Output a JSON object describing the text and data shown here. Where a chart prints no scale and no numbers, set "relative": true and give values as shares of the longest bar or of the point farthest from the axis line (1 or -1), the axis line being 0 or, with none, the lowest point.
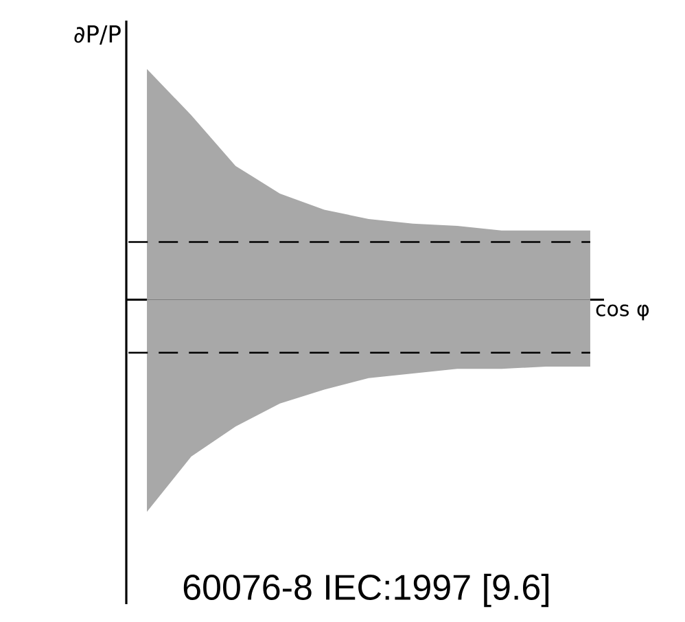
{
  "chart_data": {
    "type": "area",
    "relative": true,
    "ylabel": "∂P/P",
    "xlabel": "cos φ",
    "categories": [
      null,
      null,
      null,
      null,
      null,
      null,
      null,
      null,
      null,
      null,
      null
    ],
    "series": [
      {
        "color": "#a8a8a8",
        "values": [
          1,
          0.8,
          0.58,
          0.46,
          0.39,
          0.35,
          0.33,
          0.32,
          0.3,
          0.3,
          0.3
        ]
      },
      {
        "color": "#a8a8a8",
        "values": [
          -0.92,
          -0.68,
          -0.55,
          -0.45,
          -0.39,
          -0.34,
          -0.32,
          -0.3,
          -0.3,
          -0.29,
          -0.29
        ]
      }
    ],
    "ref_lines": [
      {
        "axis": "y",
        "value": 0.25,
        "line_style": "dashed"
      },
      {
        "axis": "y",
        "value": -0.23,
        "line_style": "dashed"
      }
    ],
    "annotations": [
      "60076-8 IEC:1997 [9.6]"
    ]
  }
}
